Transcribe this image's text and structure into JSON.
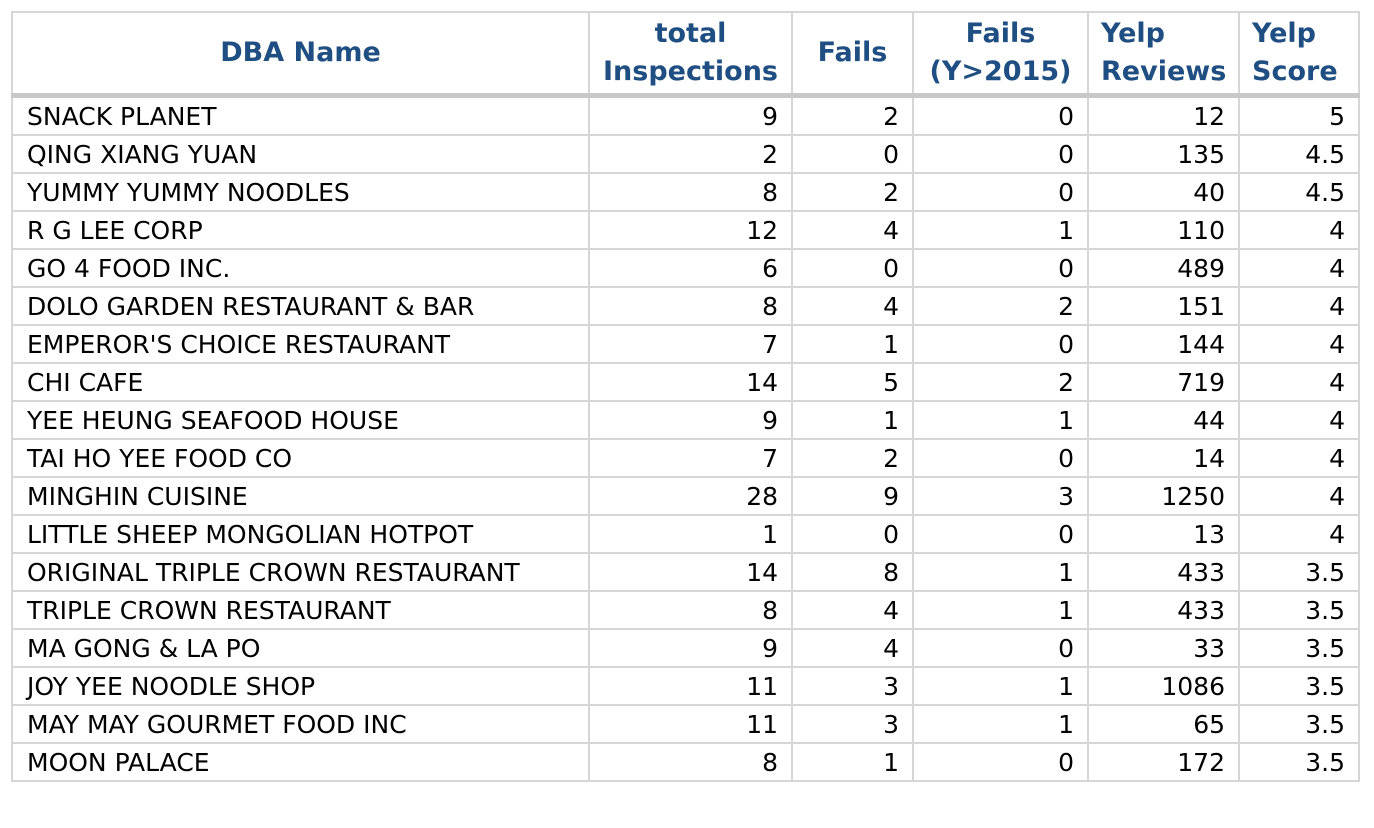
{
  "table": {
    "headers": [
      {
        "lines": [
          "DBA Name"
        ]
      },
      {
        "lines": [
          "total",
          "Inspections"
        ]
      },
      {
        "lines": [
          "Fails"
        ]
      },
      {
        "lines": [
          "Fails",
          "(Y>2015)"
        ]
      },
      {
        "lines": [
          "Yelp",
          "Reviews"
        ]
      },
      {
        "lines": [
          "Yelp",
          "Score"
        ]
      }
    ],
    "rows": [
      [
        "SNACK PLANET",
        "9",
        "2",
        "0",
        "12",
        "5"
      ],
      [
        "QING XIANG YUAN",
        "2",
        "0",
        "0",
        "135",
        "4.5"
      ],
      [
        "YUMMY YUMMY NOODLES",
        "8",
        "2",
        "0",
        "40",
        "4.5"
      ],
      [
        "R G LEE CORP",
        "12",
        "4",
        "1",
        "110",
        "4"
      ],
      [
        "GO 4 FOOD INC.",
        "6",
        "0",
        "0",
        "489",
        "4"
      ],
      [
        "DOLO GARDEN RESTAURANT & BAR",
        "8",
        "4",
        "2",
        "151",
        "4"
      ],
      [
        "EMPEROR'S CHOICE RESTAURANT",
        "7",
        "1",
        "0",
        "144",
        "4"
      ],
      [
        "CHI CAFE",
        "14",
        "5",
        "2",
        "719",
        "4"
      ],
      [
        "YEE HEUNG SEAFOOD HOUSE",
        "9",
        "1",
        "1",
        "44",
        "4"
      ],
      [
        "TAI HO YEE FOOD CO",
        "7",
        "2",
        "0",
        "14",
        "4"
      ],
      [
        "MINGHIN CUISINE",
        "28",
        "9",
        "3",
        "1250",
        "4"
      ],
      [
        "LITTLE SHEEP MONGOLIAN HOTPOT",
        "1",
        "0",
        "0",
        "13",
        "4"
      ],
      [
        "ORIGINAL TRIPLE CROWN RESTAURANT",
        "14",
        "8",
        "1",
        "433",
        "3.5"
      ],
      [
        "TRIPLE CROWN RESTAURANT",
        "8",
        "4",
        "1",
        "433",
        "3.5"
      ],
      [
        "MA GONG & LA PO",
        "9",
        "4",
        "0",
        "33",
        "3.5"
      ],
      [
        "JOY YEE NOODLE SHOP",
        "11",
        "3",
        "1",
        "1086",
        "3.5"
      ],
      [
        "MAY MAY GOURMET FOOD INC",
        "11",
        "3",
        "1",
        "65",
        "3.5"
      ],
      [
        "MOON PALACE",
        "8",
        "1",
        "0",
        "172",
        "3.5"
      ]
    ]
  },
  "colors": {
    "header_text": "#1f4e82",
    "grid_lines": "#d6d6d6",
    "body_text": "#000000"
  }
}
